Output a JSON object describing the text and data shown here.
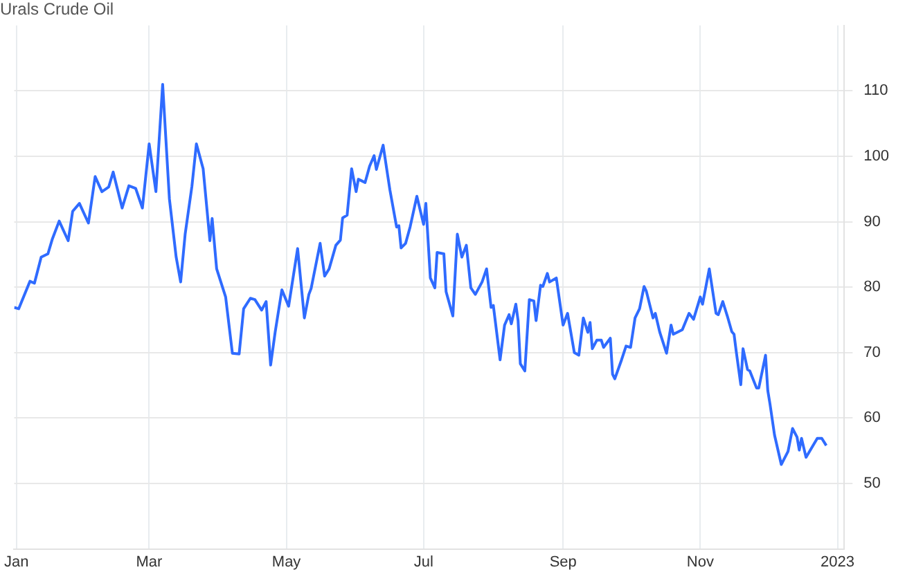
{
  "chart_data": {
    "type": "line",
    "title": "Urals Crude Oil",
    "x": [
      "2021-12-31",
      "2022-01-02",
      "2022-01-07",
      "2022-01-09",
      "2022-01-12",
      "2022-01-15",
      "2022-01-17",
      "2022-01-20",
      "2022-01-24",
      "2022-01-26",
      "2022-01-29",
      "2022-02-02",
      "2022-02-05",
      "2022-02-08",
      "2022-02-11",
      "2022-02-13",
      "2022-02-17",
      "2022-02-20",
      "2022-02-23",
      "2022-02-26",
      "2022-03-01",
      "2022-03-04",
      "2022-03-07",
      "2022-03-10",
      "2022-03-13",
      "2022-03-15",
      "2022-03-17",
      "2022-03-20",
      "2022-03-22",
      "2022-03-25",
      "2022-03-28",
      "2022-03-29",
      "2022-03-31",
      "2022-04-04",
      "2022-04-07",
      "2022-04-10",
      "2022-04-12",
      "2022-04-15",
      "2022-04-17",
      "2022-04-20",
      "2022-04-22",
      "2022-04-24",
      "2022-04-26",
      "2022-04-29",
      "2022-05-02",
      "2022-05-06",
      "2022-05-09",
      "2022-05-11",
      "2022-05-12",
      "2022-05-16",
      "2022-05-18",
      "2022-05-20",
      "2022-05-23",
      "2022-05-25",
      "2022-05-26",
      "2022-05-28",
      "2022-05-30",
      "2022-06-01",
      "2022-06-02",
      "2022-06-05",
      "2022-06-07",
      "2022-06-09",
      "2022-06-10",
      "2022-06-13",
      "2022-06-16",
      "2022-06-19",
      "2022-06-20",
      "2022-06-21",
      "2022-06-23",
      "2022-06-25",
      "2022-06-28",
      "2022-07-01",
      "2022-07-02",
      "2022-07-04",
      "2022-07-06",
      "2022-07-07",
      "2022-07-10",
      "2022-07-11",
      "2022-07-14",
      "2022-07-16",
      "2022-07-18",
      "2022-07-20",
      "2022-07-22",
      "2022-07-24",
      "2022-07-27",
      "2022-07-29",
      "2022-07-31",
      "2022-08-01",
      "2022-08-04",
      "2022-08-06",
      "2022-08-08",
      "2022-08-09",
      "2022-08-11",
      "2022-08-12",
      "2022-08-13",
      "2022-08-15",
      "2022-08-17",
      "2022-08-19",
      "2022-08-20",
      "2022-08-22",
      "2022-08-23",
      "2022-08-25",
      "2022-08-26",
      "2022-08-29",
      "2022-09-01",
      "2022-09-03",
      "2022-09-06",
      "2022-09-08",
      "2022-09-10",
      "2022-09-12",
      "2022-09-13",
      "2022-09-14",
      "2022-09-16",
      "2022-09-18",
      "2022-09-19",
      "2022-09-22",
      "2022-09-23",
      "2022-09-24",
      "2022-09-27",
      "2022-09-29",
      "2022-10-01",
      "2022-10-03",
      "2022-10-05",
      "2022-10-07",
      "2022-10-08",
      "2022-10-11",
      "2022-10-12",
      "2022-10-14",
      "2022-10-17",
      "2022-10-19",
      "2022-10-20",
      "2022-10-24",
      "2022-10-27",
      "2022-10-29",
      "2022-11-01",
      "2022-11-02",
      "2022-11-05",
      "2022-11-08",
      "2022-11-09",
      "2022-11-11",
      "2022-11-13",
      "2022-11-15",
      "2022-11-16",
      "2022-11-17",
      "2022-11-19",
      "2022-11-20",
      "2022-11-22",
      "2022-11-23",
      "2022-11-26",
      "2022-11-27",
      "2022-11-30",
      "2022-12-01",
      "2022-12-02",
      "2022-12-04",
      "2022-12-07",
      "2022-12-10",
      "2022-12-12",
      "2022-12-14",
      "2022-12-15",
      "2022-12-16",
      "2022-12-18",
      "2022-12-23",
      "2022-12-25",
      "2022-12-27"
    ],
    "series": [
      {
        "color": "#2f6bff",
        "values": [
          76.9,
          76.7,
          80.9,
          80.6,
          84.6,
          85.1,
          87.4,
          90.1,
          87.1,
          91.6,
          92.8,
          89.8,
          96.9,
          94.6,
          95.3,
          97.6,
          92.1,
          95.5,
          95.1,
          92.1,
          101.9,
          94.6,
          111.0,
          93.5,
          84.6,
          80.8,
          88.1,
          95.4,
          101.9,
          98.1,
          87.1,
          90.5,
          82.8,
          78.5,
          69.9,
          69.8,
          76.7,
          78.3,
          78.1,
          76.5,
          77.8,
          68.1,
          73.1,
          79.6,
          77.1,
          85.9,
          75.3,
          78.9,
          79.8,
          86.7,
          81.7,
          82.8,
          86.4,
          87.2,
          90.6,
          91.0,
          98.1,
          94.6,
          96.5,
          96.0,
          98.5,
          100.1,
          98.0,
          101.7,
          94.9,
          89.2,
          89.4,
          86.0,
          86.7,
          89.2,
          93.9,
          89.6,
          92.8,
          81.4,
          79.9,
          85.3,
          85.1,
          79.3,
          75.6,
          88.1,
          84.6,
          86.4,
          79.9,
          78.9,
          80.8,
          82.8,
          76.9,
          77.2,
          68.9,
          74.2,
          75.8,
          74.4,
          77.4,
          74.9,
          68.3,
          67.2,
          78.1,
          77.9,
          74.9,
          80.3,
          80.1,
          82.1,
          80.8,
          81.4,
          74.2,
          76.0,
          70.0,
          69.6,
          75.3,
          73.1,
          74.6,
          70.6,
          71.9,
          71.9,
          70.8,
          72.2,
          66.7,
          66.0,
          68.9,
          71.0,
          70.8,
          75.3,
          76.7,
          80.1,
          79.4,
          75.3,
          76.0,
          73.1,
          69.9,
          74.2,
          72.8,
          73.5,
          76.0,
          75.1,
          78.5,
          77.4,
          82.8,
          76.0,
          75.8,
          77.8,
          75.6,
          73.2,
          72.8,
          70.1,
          65.1,
          70.6,
          67.4,
          67.2,
          64.6,
          64.6,
          69.6,
          64.2,
          62.1,
          57.4,
          52.9,
          54.9,
          58.4,
          57.1,
          55.1,
          56.9,
          54.0,
          56.9,
          56.9,
          55.8
        ]
      }
    ],
    "xlim": [
      "2021-12-31",
      "2023-01-04"
    ],
    "xticks": [
      {
        "value": "2022-01-01",
        "label": "Jan"
      },
      {
        "value": "2022-03-01",
        "label": "Mar"
      },
      {
        "value": "2022-05-01",
        "label": "May"
      },
      {
        "value": "2022-07-01",
        "label": "Jul"
      },
      {
        "value": "2022-09-01",
        "label": "Sep"
      },
      {
        "value": "2022-11-01",
        "label": "Nov"
      },
      {
        "value": "2023-01-01",
        "label": "2023"
      }
    ],
    "ylim": [
      40,
      120
    ],
    "yticks": [
      50,
      60,
      70,
      80,
      90,
      100,
      110
    ],
    "grid": true,
    "legend": false,
    "marker": "none",
    "line_style": "solid"
  }
}
